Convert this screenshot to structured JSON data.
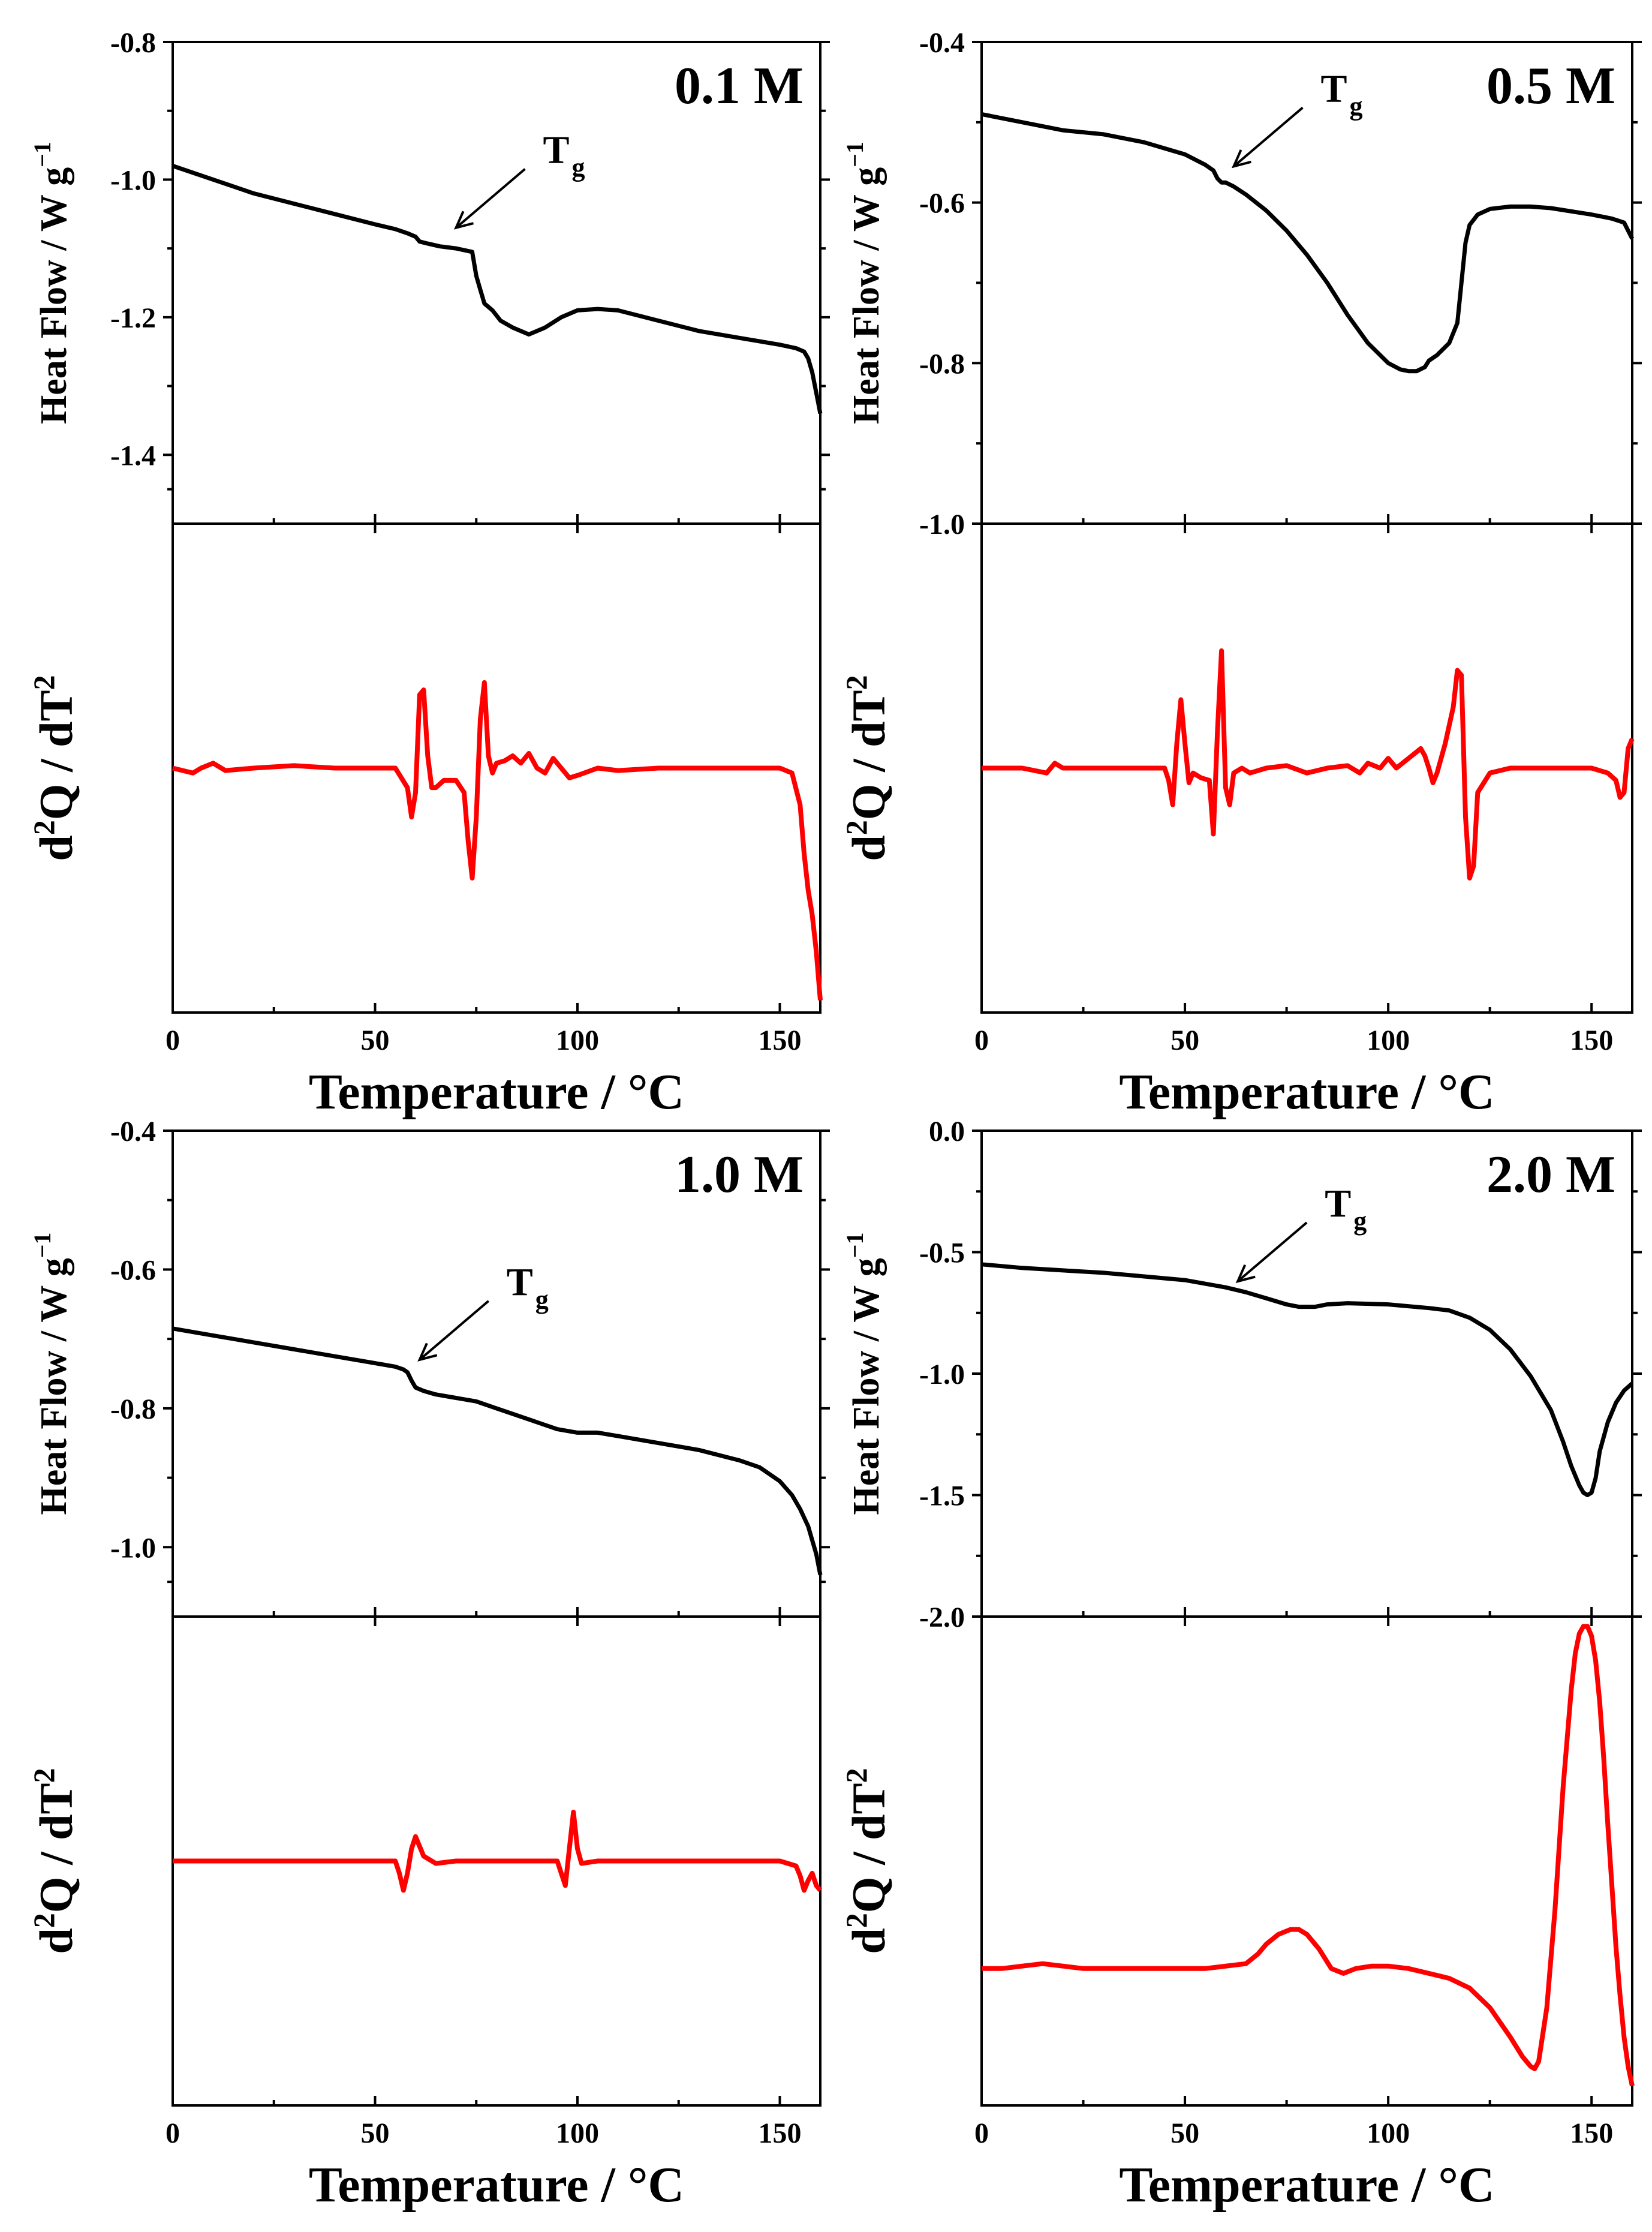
{
  "colors": {
    "heat_flow": "#000000",
    "d2q": "#ff0000"
  },
  "chart_data": [
    {
      "type": "line",
      "panel": "top-left",
      "label": "0.1 M",
      "tg_label": "T",
      "tg_sub": "g",
      "tg_arrow_x": 70,
      "tg_arrow_y": -1.07,
      "xlabel": "Temperature / °C",
      "xlim": [
        0,
        160
      ],
      "xticks": [
        "0",
        "50",
        "100",
        "150"
      ],
      "top": {
        "ylabel": "Heat Flow / W g",
        "ylabel_sup": "−1",
        "ylim": [
          -1.5,
          -0.8
        ],
        "yticks": [
          "-0.8",
          "-1.0",
          "-1.2",
          "-1.4"
        ],
        "ytick_values": [
          -0.8,
          -1.0,
          -1.2,
          -1.4
        ],
        "x": [
          0,
          10,
          20,
          30,
          40,
          50,
          55,
          58,
          60,
          61,
          63,
          66,
          70,
          74,
          75,
          76,
          77,
          79,
          81,
          84,
          88,
          92,
          96,
          100,
          105,
          110,
          120,
          130,
          140,
          150,
          154,
          156,
          157,
          158,
          159,
          160
        ],
        "y": [
          -0.98,
          -1.0,
          -1.02,
          -1.035,
          -1.05,
          -1.065,
          -1.072,
          -1.078,
          -1.083,
          -1.09,
          -1.093,
          -1.097,
          -1.1,
          -1.105,
          -1.14,
          -1.16,
          -1.18,
          -1.19,
          -1.205,
          -1.215,
          -1.225,
          -1.215,
          -1.2,
          -1.19,
          -1.188,
          -1.19,
          -1.205,
          -1.22,
          -1.23,
          -1.24,
          -1.245,
          -1.25,
          -1.26,
          -1.28,
          -1.31,
          -1.34
        ]
      },
      "bottom": {
        "ylabel": "d",
        "ylabel_sup": "2",
        "ylabel_rest": "Q / dT",
        "ylabel_sup2": "2",
        "ylim": [
          -1.0,
          1.0
        ],
        "x": [
          0,
          5,
          7,
          10,
          13,
          20,
          30,
          40,
          50,
          55,
          58,
          59,
          60,
          61,
          62,
          63,
          64,
          65,
          67,
          70,
          72,
          73,
          74,
          75,
          76,
          77,
          78,
          79,
          80,
          82,
          84,
          86,
          88,
          90,
          92,
          94,
          96,
          98,
          100,
          105,
          110,
          120,
          130,
          140,
          150,
          153,
          155,
          156,
          157,
          158,
          159,
          160
        ],
        "y": [
          0.0,
          -0.02,
          0.0,
          0.02,
          -0.01,
          0.0,
          0.01,
          0.0,
          0.0,
          0.0,
          -0.08,
          -0.2,
          -0.1,
          0.3,
          0.32,
          0.05,
          -0.08,
          -0.08,
          -0.05,
          -0.05,
          -0.1,
          -0.3,
          -0.45,
          -0.2,
          0.2,
          0.35,
          0.05,
          -0.02,
          0.02,
          0.03,
          0.05,
          0.02,
          0.06,
          0.0,
          -0.02,
          0.04,
          0.0,
          -0.04,
          -0.03,
          0.0,
          -0.01,
          0.0,
          0.0,
          0.0,
          0.0,
          -0.02,
          -0.15,
          -0.35,
          -0.5,
          -0.6,
          -0.75,
          -0.95
        ]
      }
    },
    {
      "type": "line",
      "panel": "top-right",
      "label": "0.5 M",
      "tg_label": "T",
      "tg_sub": "g",
      "tg_arrow_x": 62,
      "tg_arrow_y": -0.555,
      "xlabel": "Temperature / °C",
      "xlim": [
        0,
        160
      ],
      "xticks": [
        "0",
        "50",
        "100",
        "150"
      ],
      "top": {
        "ylabel": "Heat Flow / W g",
        "ylabel_sup": "−1",
        "ylim": [
          -1.0,
          -0.4
        ],
        "yticks": [
          "-0.4",
          "-0.6",
          "-0.8",
          "-1.0"
        ],
        "ytick_values": [
          -0.4,
          -0.6,
          -0.8,
          -1.0
        ],
        "x": [
          0,
          10,
          20,
          30,
          40,
          50,
          55,
          57,
          58,
          59,
          60,
          62,
          65,
          70,
          75,
          80,
          85,
          90,
          95,
          100,
          103,
          105,
          107,
          109,
          110,
          112,
          115,
          117,
          118,
          119,
          120,
          122,
          125,
          130,
          135,
          140,
          150,
          155,
          158,
          159,
          160
        ],
        "y": [
          -0.49,
          -0.5,
          -0.51,
          -0.515,
          -0.525,
          -0.54,
          -0.553,
          -0.56,
          -0.57,
          -0.575,
          -0.575,
          -0.58,
          -0.59,
          -0.61,
          -0.635,
          -0.665,
          -0.7,
          -0.74,
          -0.775,
          -0.8,
          -0.808,
          -0.81,
          -0.81,
          -0.805,
          -0.797,
          -0.79,
          -0.775,
          -0.75,
          -0.7,
          -0.65,
          -0.628,
          -0.615,
          -0.608,
          -0.605,
          -0.605,
          -0.607,
          -0.615,
          -0.62,
          -0.625,
          -0.635,
          -0.645
        ]
      },
      "bottom": {
        "ylabel": "d",
        "ylabel_sup": "2",
        "ylabel_rest": "Q / dT",
        "ylabel_sup2": "2",
        "ylim": [
          -1.0,
          1.0
        ],
        "x": [
          0,
          10,
          16,
          18,
          20,
          30,
          40,
          45,
          46,
          47,
          48,
          49,
          50,
          51,
          52,
          54,
          56,
          57,
          58,
          59,
          60,
          61,
          62,
          64,
          66,
          70,
          75,
          80,
          85,
          90,
          93,
          95,
          98,
          100,
          102,
          105,
          108,
          109,
          110,
          111,
          112,
          114,
          116,
          117,
          118,
          119,
          120,
          121,
          122,
          125,
          130,
          140,
          150,
          154,
          156,
          157,
          158,
          159,
          160
        ],
        "y": [
          0.0,
          0.0,
          -0.02,
          0.02,
          0.0,
          0.0,
          0.0,
          0.0,
          -0.05,
          -0.15,
          0.1,
          0.28,
          0.1,
          -0.06,
          -0.02,
          -0.04,
          -0.05,
          -0.27,
          0.15,
          0.48,
          -0.08,
          -0.15,
          -0.02,
          0.0,
          -0.02,
          0.0,
          0.01,
          -0.02,
          0.0,
          0.01,
          -0.02,
          0.02,
          0.0,
          0.04,
          0.0,
          0.04,
          0.08,
          0.05,
          0.0,
          -0.06,
          -0.02,
          0.1,
          0.25,
          0.4,
          0.38,
          -0.2,
          -0.45,
          -0.4,
          -0.1,
          -0.02,
          0.0,
          0.0,
          0.0,
          -0.02,
          -0.05,
          -0.12,
          -0.1,
          0.08,
          0.12
        ]
      }
    },
    {
      "type": "line",
      "panel": "bottom-left",
      "label": "1.0 M",
      "tg_label": "T",
      "tg_sub": "g",
      "tg_arrow_x": 61,
      "tg_arrow_y": -0.73,
      "xlabel": "Temperature / °C",
      "xlim": [
        0,
        160
      ],
      "xticks": [
        "0",
        "50",
        "100",
        "150"
      ],
      "top": {
        "ylabel": "Heat Flow / W g",
        "ylabel_sup": "−1",
        "ylim": [
          -1.1,
          -0.4
        ],
        "yticks": [
          "-0.4",
          "-0.6",
          "-0.8",
          "-1.0"
        ],
        "ytick_values": [
          -0.4,
          -0.6,
          -0.8,
          -1.0
        ],
        "x": [
          0,
          10,
          20,
          30,
          40,
          50,
          55,
          57,
          58,
          59,
          60,
          62,
          65,
          70,
          75,
          80,
          85,
          90,
          95,
          100,
          105,
          110,
          120,
          130,
          140,
          145,
          150,
          153,
          155,
          157,
          158,
          159,
          160
        ],
        "y": [
          -0.685,
          -0.695,
          -0.705,
          -0.715,
          -0.725,
          -0.735,
          -0.74,
          -0.744,
          -0.748,
          -0.76,
          -0.77,
          -0.775,
          -0.78,
          -0.785,
          -0.79,
          -0.8,
          -0.81,
          -0.82,
          -0.83,
          -0.835,
          -0.835,
          -0.84,
          -0.85,
          -0.86,
          -0.875,
          -0.885,
          -0.905,
          -0.925,
          -0.945,
          -0.97,
          -0.99,
          -1.01,
          -1.04
        ]
      },
      "bottom": {
        "ylabel": "d",
        "ylabel_sup": "2",
        "ylabel_rest": "Q / dT",
        "ylabel_sup2": "2",
        "ylim": [
          -1.0,
          1.0
        ],
        "x": [
          0,
          10,
          20,
          30,
          40,
          50,
          55,
          56,
          57,
          58,
          59,
          60,
          62,
          65,
          70,
          80,
          90,
          95,
          96,
          97,
          98,
          99,
          100,
          101,
          105,
          110,
          120,
          130,
          140,
          150,
          154,
          155,
          156,
          157,
          158,
          159,
          160
        ],
        "y": [
          0.0,
          0.0,
          0.0,
          0.0,
          0.0,
          0.0,
          0.0,
          -0.05,
          -0.12,
          -0.05,
          0.05,
          0.1,
          0.02,
          -0.01,
          0.0,
          0.0,
          0.0,
          0.0,
          -0.05,
          -0.1,
          0.05,
          0.2,
          0.05,
          -0.01,
          0.0,
          0.0,
          0.0,
          0.0,
          0.0,
          0.0,
          -0.02,
          -0.06,
          -0.12,
          -0.08,
          -0.05,
          -0.1,
          -0.12
        ]
      }
    },
    {
      "type": "line",
      "panel": "bottom-right",
      "label": "2.0 M",
      "tg_label": "T",
      "tg_sub": "g",
      "tg_arrow_x": 63,
      "tg_arrow_y": -0.62,
      "xlabel": "Temperature / °C",
      "xlim": [
        0,
        160
      ],
      "xticks": [
        "0",
        "50",
        "100",
        "150"
      ],
      "top": {
        "ylabel": "Heat Flow / W g",
        "ylabel_sup": "−1",
        "ylim": [
          -2.0,
          0.0
        ],
        "yticks": [
          "0.0",
          "-0.5",
          "-1.0",
          "-1.5",
          "-2.0"
        ],
        "ytick_values": [
          0.0,
          -0.5,
          -1.0,
          -1.5,
          -2.0
        ],
        "x": [
          0,
          10,
          20,
          30,
          40,
          50,
          60,
          65,
          70,
          75,
          78,
          82,
          85,
          90,
          100,
          110,
          115,
          120,
          125,
          130,
          135,
          140,
          143,
          145,
          147,
          148,
          149,
          150,
          151,
          152,
          154,
          156,
          158,
          160
        ],
        "y": [
          -0.55,
          -0.565,
          -0.575,
          -0.585,
          -0.6,
          -0.615,
          -0.645,
          -0.665,
          -0.69,
          -0.715,
          -0.725,
          -0.725,
          -0.715,
          -0.71,
          -0.715,
          -0.73,
          -0.74,
          -0.77,
          -0.82,
          -0.9,
          -1.01,
          -1.15,
          -1.28,
          -1.38,
          -1.46,
          -1.49,
          -1.5,
          -1.49,
          -1.43,
          -1.32,
          -1.2,
          -1.12,
          -1.07,
          -1.04
        ]
      },
      "bottom": {
        "ylabel": "d",
        "ylabel_sup": "2",
        "ylabel_rest": "Q / dT",
        "ylabel_sup2": "2",
        "ylim": [
          -1.0,
          1.0
        ],
        "x": [
          0,
          5,
          10,
          15,
          20,
          25,
          35,
          45,
          55,
          65,
          68,
          70,
          73,
          76,
          78,
          80,
          83,
          86,
          89,
          92,
          96,
          100,
          105,
          110,
          115,
          120,
          125,
          130,
          133,
          135,
          136,
          137,
          139,
          141,
          143,
          145,
          146,
          147,
          148,
          149,
          150,
          151,
          152,
          153,
          154,
          155,
          156,
          157,
          158,
          159,
          160
        ],
        "y": [
          -0.44,
          -0.44,
          -0.43,
          -0.42,
          -0.43,
          -0.44,
          -0.44,
          -0.44,
          -0.44,
          -0.42,
          -0.38,
          -0.34,
          -0.3,
          -0.28,
          -0.28,
          -0.3,
          -0.36,
          -0.44,
          -0.46,
          -0.44,
          -0.43,
          -0.43,
          -0.44,
          -0.46,
          -0.48,
          -0.52,
          -0.6,
          -0.72,
          -0.8,
          -0.84,
          -0.85,
          -0.82,
          -0.6,
          -0.2,
          0.3,
          0.7,
          0.85,
          0.93,
          0.96,
          0.96,
          0.92,
          0.82,
          0.65,
          0.42,
          0.15,
          -0.1,
          -0.35,
          -0.55,
          -0.72,
          -0.84,
          -0.92
        ]
      }
    }
  ]
}
